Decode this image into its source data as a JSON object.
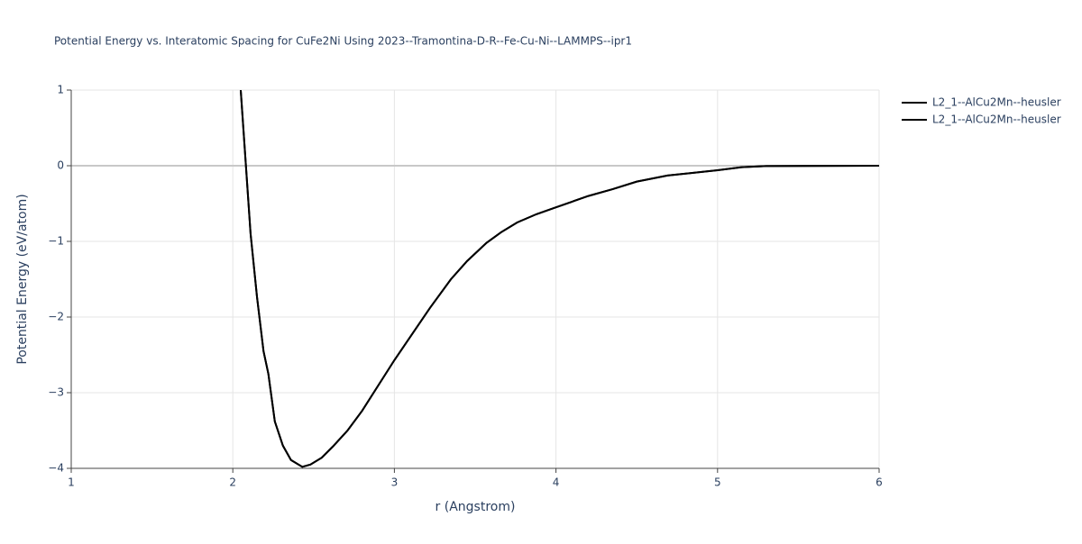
{
  "chart_data": {
    "type": "line",
    "title": "Potential Energy vs. Interatomic Spacing for CuFe2Ni Using 2023--Tramontina-D-R--Fe-Cu-Ni--LAMMPS--ipr1",
    "x_label": "r (Angstrom)",
    "y_label": "Potential Energy (eV/atom)",
    "x": [
      2.049,
      2.11,
      2.15,
      2.19,
      2.22,
      2.26,
      2.31,
      2.36,
      2.43,
      2.48,
      2.55,
      2.62,
      2.71,
      2.8,
      3.0,
      3.22,
      3.35,
      3.45,
      3.57,
      3.66,
      3.76,
      3.88,
      4.0,
      4.2,
      4.35,
      4.5,
      4.69,
      5.0,
      5.15,
      5.3,
      6.0
    ],
    "series": [
      {
        "name": "L2_1--AlCu2Mn--heusler",
        "color": "#000000",
        "values": [
          1.0,
          -0.9,
          -1.74,
          -2.45,
          -2.75,
          -3.38,
          -3.7,
          -3.89,
          -3.98,
          -3.95,
          -3.86,
          -3.71,
          -3.5,
          -3.24,
          -2.57,
          -1.88,
          -1.5,
          -1.26,
          -1.02,
          -0.88,
          -0.75,
          -0.64,
          -0.55,
          -0.4,
          -0.31,
          -0.21,
          -0.13,
          -0.06,
          -0.02,
          -0.005,
          0
        ]
      },
      {
        "name": "L2_1--AlCu2Mn--heusler",
        "color": "#000000",
        "values": [
          1.0,
          -0.9,
          -1.74,
          -2.45,
          -2.75,
          -3.38,
          -3.7,
          -3.89,
          -3.98,
          -3.95,
          -3.86,
          -3.71,
          -3.5,
          -3.24,
          -2.57,
          -1.88,
          -1.5,
          -1.26,
          -1.02,
          -0.88,
          -0.75,
          -0.64,
          -0.55,
          -0.4,
          -0.31,
          -0.21,
          -0.13,
          -0.06,
          -0.02,
          -0.005,
          0
        ]
      }
    ],
    "xlim": [
      1,
      6
    ],
    "xticks": [
      1,
      2,
      3,
      4,
      5,
      6
    ],
    "ylim": [
      -4,
      1
    ],
    "yticks": [
      {
        "value": -4,
        "label": "−4"
      },
      {
        "value": -3,
        "label": "−3"
      },
      {
        "value": -2,
        "label": "−2"
      },
      {
        "value": -1,
        "label": "−1"
      },
      0,
      1
    ],
    "grid": true
  }
}
